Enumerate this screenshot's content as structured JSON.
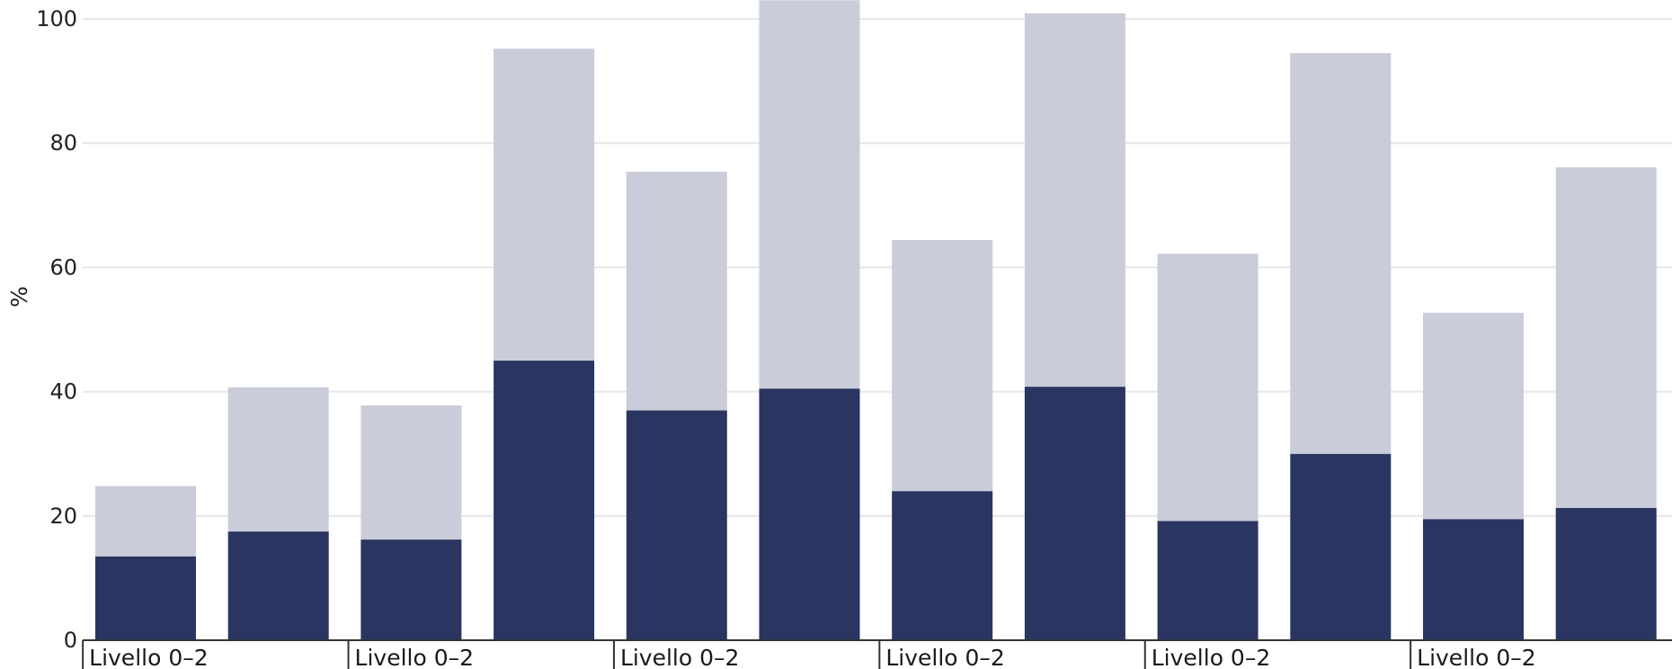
{
  "chart_data": {
    "type": "bar",
    "stacked": true,
    "title": "",
    "xlabel": "",
    "ylabel": "%",
    "ylim": [
      0,
      100
    ],
    "yticks": [
      0,
      20,
      40,
      60,
      80,
      100
    ],
    "grid": true,
    "group_labels": [
      "Livello 0–2",
      "Livello 0–2",
      "Livello 0–2",
      "Livello 0–2",
      "Livello 0–2",
      "Livello 0–2"
    ],
    "bars_per_group": 2,
    "series": [
      {
        "values": [
          13.5,
          17.5,
          16.2,
          45.0,
          37.0,
          40.5,
          24.0,
          40.8,
          19.2,
          30.0,
          19.5,
          21.3
        ]
      },
      {
        "values": [
          11.3,
          23.2,
          21.6,
          50.2,
          38.4,
          62.5,
          40.4,
          60.1,
          43.0,
          64.5,
          33.2,
          54.8
        ]
      }
    ],
    "colors": [
      "#2a3562",
      "#cacdd9"
    ],
    "gridColor": "#e6e6e6",
    "axisColor": "#333333"
  }
}
